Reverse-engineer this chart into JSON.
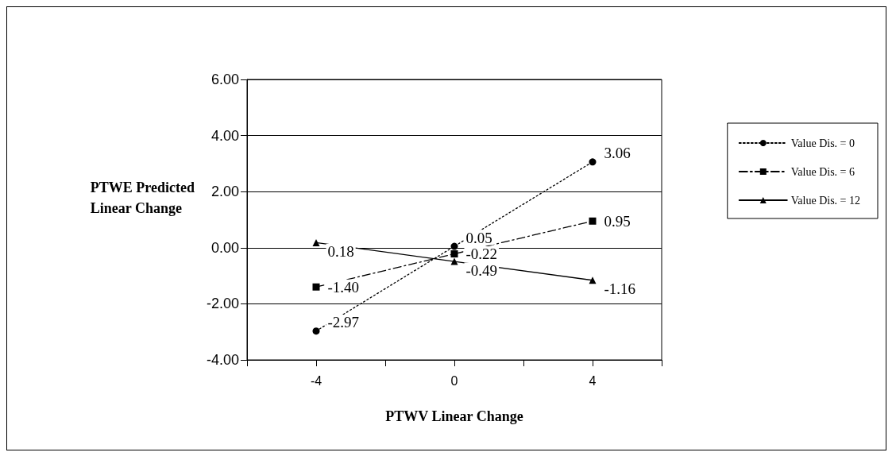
{
  "chart_data": {
    "type": "line",
    "xlabel": "PTWV Linear Change",
    "ylabel": "PTWE Predicted\nLinear Change",
    "xlim": [
      -6,
      6
    ],
    "xticks": [
      {
        "value": -6,
        "label": null
      },
      -4,
      {
        "value": -2,
        "label": null
      },
      0,
      {
        "value": 2,
        "label": null
      },
      4,
      {
        "value": 6,
        "label": null
      }
    ],
    "ylim": [
      -4,
      6
    ],
    "yticks": [
      {
        "value": -4,
        "label": "-4.00"
      },
      {
        "value": -2,
        "label": "-2.00"
      },
      {
        "value": 0,
        "label": "0.00"
      },
      {
        "value": 2,
        "label": "2.00"
      },
      {
        "value": 4,
        "label": "4.00"
      },
      {
        "value": 6,
        "label": "6.00"
      }
    ],
    "x": [
      -4,
      0,
      4
    ],
    "series": [
      {
        "name": "Value Dis. = 0",
        "color": "#000000",
        "values": [
          -2.97,
          0.05,
          3.06
        ],
        "value_labels": [
          "-2.97",
          "0.05",
          "3.06"
        ],
        "marker": "circle",
        "line_style": "dotted"
      },
      {
        "name": "Value Dis. = 6",
        "color": "#000000",
        "values": [
          -1.4,
          -0.22,
          0.95
        ],
        "value_labels": [
          "-1.40",
          "-0.22",
          "0.95"
        ],
        "marker": "square",
        "line_style": "dashdot"
      },
      {
        "name": "Value Dis. = 12",
        "color": "#000000",
        "values": [
          0.18,
          -0.49,
          -1.16
        ],
        "value_labels": [
          "0.18",
          "-0.49",
          "-1.16"
        ],
        "marker": "triangle",
        "line_style": "solid"
      }
    ],
    "grid": "y",
    "legend": "right"
  }
}
